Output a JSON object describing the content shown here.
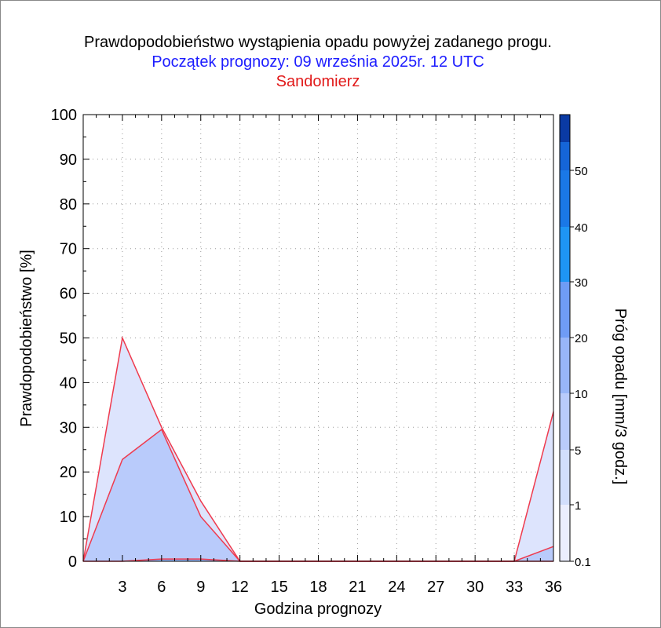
{
  "chart_data": {
    "type": "area",
    "title": "Prawdopodobieństwo wystąpienia opadu powyżej zadanego progu.",
    "subtitle": "Początek prognozy: 09 września 2025r. 12 UTC",
    "location": "Sandomierz",
    "xlabel": "Godzina prognozy",
    "ylabel": "Prawdopodobieństwo [%]",
    "colorbar_label": "Próg opadu [mm/3 godz.]",
    "xlim": [
      0,
      36
    ],
    "ylim": [
      0,
      100
    ],
    "x_ticks": [
      "3",
      "6",
      "9",
      "12",
      "15",
      "18",
      "21",
      "24",
      "27",
      "30",
      "33",
      "36"
    ],
    "y_ticks": [
      "0",
      "10",
      "20",
      "30",
      "40",
      "50",
      "60",
      "70",
      "80",
      "90",
      "100"
    ],
    "grid": true,
    "x": [
      0,
      3,
      6,
      9,
      12,
      15,
      18,
      21,
      24,
      27,
      30,
      33,
      36
    ],
    "series": [
      {
        "threshold": "0.1",
        "color": "#dde4fd",
        "values": [
          0,
          50,
          30,
          13.5,
          0,
          0,
          0,
          0,
          0,
          0,
          0,
          0,
          33.5
        ]
      },
      {
        "threshold": "1",
        "color": "#b9cbfb",
        "values": [
          0,
          22.8,
          29.5,
          10,
          0,
          0,
          0,
          0,
          0,
          0,
          0,
          0,
          3.3
        ]
      },
      {
        "threshold": "5",
        "color": "#98b6f8",
        "values": [
          0,
          0,
          0.5,
          0.5,
          0,
          0,
          0,
          0,
          0,
          0,
          0,
          0,
          0
        ]
      }
    ],
    "colorbar": {
      "tick_labels": [
        "0.1",
        "1",
        "5",
        "10",
        "20",
        "30",
        "40",
        "50"
      ],
      "colors": [
        "#ebeefe",
        "#d2defc",
        "#b9cbfb",
        "#98b6f8",
        "#6f9cf5",
        "#1e95f4",
        "#1a78e6",
        "#1565d8",
        "#0f4fc1",
        "#0a3aa4"
      ]
    },
    "line_color": "#ef3a4e"
  }
}
